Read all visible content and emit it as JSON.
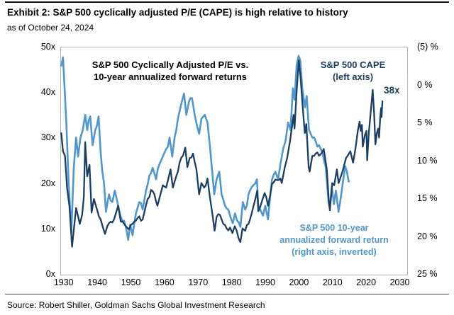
{
  "header": {
    "title": "Exhibit 2: S&P 500 cyclically adjusted P/E (CAPE) is high relative to history",
    "subtitle": "as of October 24, 2024"
  },
  "source": "Source: Robert Shiller, Goldman Sachs Global Investment Research",
  "colors": {
    "cape_line": "#1b3e63",
    "forward_line": "#4f97d3",
    "plot_border": "#b3b3b3",
    "rule": "#111111"
  },
  "annotations": {
    "chart_title_line1": "S&P 500 Cyclically Adjusted P/E vs.",
    "chart_title_line2": "10-year annualized forward returns",
    "cape_label_line1": "S&P 500 CAPE",
    "cape_label_line2": "(left axis)",
    "last_value_label": "38x",
    "forward_label_line1": "S&P 500 10-year",
    "forward_label_line2": "annualized forward return",
    "forward_label_line3": "(right axis, inverted)"
  },
  "chart_data": {
    "type": "line",
    "title": "S&P 500 Cyclically Adjusted P/E vs. 10-year annualized forward returns",
    "grid": false,
    "legend_position": "inline-annotations",
    "x_axis": {
      "range": [
        1929,
        2032
      ],
      "ticks": [
        1930,
        1940,
        1950,
        1960,
        1970,
        1980,
        1990,
        2000,
        2010,
        2020,
        2030
      ]
    },
    "left_axis": {
      "title": "S&P 500 CAPE (left axis)",
      "range": [
        0,
        50
      ],
      "tick_values": [
        50,
        40,
        30,
        20,
        10,
        0
      ],
      "tick_labels": [
        "50x",
        "40x",
        "30x",
        "20x",
        "10x",
        "0x"
      ]
    },
    "right_axis": {
      "title": "S&P 500 10-year annualized forward return (right axis, inverted)",
      "range": [
        -5,
        25
      ],
      "inverted": true,
      "tick_values": [
        -5,
        0,
        5,
        10,
        15,
        20,
        25
      ],
      "tick_labels": [
        "(5) %",
        "0 %",
        "5 %",
        "10 %",
        "15 %",
        "20 %",
        "25 %"
      ]
    },
    "series": [
      {
        "name": "S&P 500 10-year annualized forward return",
        "axis": "right",
        "color": "#4f97d3",
        "stroke_width": 2.6,
        "jitter": 0.5,
        "points": [
          [
            1929.3,
            -2.5
          ],
          [
            1929.8,
            -3.6
          ],
          [
            1930.8,
            5
          ],
          [
            1931.5,
            13
          ],
          [
            1932.3,
            19.5
          ],
          [
            1933,
            11
          ],
          [
            1933.7,
            7
          ],
          [
            1934.3,
            9.5
          ],
          [
            1935,
            7
          ],
          [
            1936.4,
            4
          ],
          [
            1937,
            6
          ],
          [
            1937.9,
            4.2
          ],
          [
            1938.6,
            8
          ],
          [
            1939.4,
            6
          ],
          [
            1940.4,
            4.2
          ],
          [
            1941,
            9
          ],
          [
            1942,
            13
          ],
          [
            1942.6,
            16.8
          ],
          [
            1943.5,
            14.5
          ],
          [
            1944.5,
            15.5
          ],
          [
            1945.2,
            14
          ],
          [
            1946,
            15.5
          ],
          [
            1947,
            17.5
          ],
          [
            1948,
            18
          ],
          [
            1949.2,
            20.5
          ],
          [
            1949.8,
            18.5
          ],
          [
            1950.5,
            19.9
          ],
          [
            1951.5,
            17
          ],
          [
            1952.5,
            15.5
          ],
          [
            1953.5,
            16.5
          ],
          [
            1954.5,
            14
          ],
          [
            1955.5,
            12
          ],
          [
            1956.5,
            11
          ],
          [
            1957.5,
            12.5
          ],
          [
            1958.5,
            10.5
          ],
          [
            1959.5,
            9.5
          ],
          [
            1960.5,
            8.5
          ],
          [
            1961.5,
            7
          ],
          [
            1962.3,
            9.5
          ],
          [
            1963,
            7
          ],
          [
            1964,
            4.5
          ],
          [
            1965,
            2.5
          ],
          [
            1965.8,
            1.2
          ],
          [
            1966.5,
            4
          ],
          [
            1967.3,
            2.2
          ],
          [
            1968.2,
            1.8
          ],
          [
            1969,
            4
          ],
          [
            1970.3,
            6.5
          ],
          [
            1971,
            4.5
          ],
          [
            1972,
            4
          ],
          [
            1972.8,
            5
          ],
          [
            1973.5,
            8
          ],
          [
            1974.8,
            14.5
          ],
          [
            1975.5,
            12.5
          ],
          [
            1976.3,
            11.5
          ],
          [
            1977,
            14.5
          ],
          [
            1978,
            16
          ],
          [
            1979,
            16.5
          ],
          [
            1980.3,
            18.3
          ],
          [
            1981,
            17
          ],
          [
            1982.6,
            18.8
          ],
          [
            1983.3,
            15.5
          ],
          [
            1984,
            16.5
          ],
          [
            1985,
            14.5
          ],
          [
            1986,
            13.5
          ],
          [
            1987.5,
            12.5
          ],
          [
            1987.9,
            16
          ],
          [
            1988.5,
            16.5
          ],
          [
            1989.3,
            17.3
          ],
          [
            1990,
            16
          ],
          [
            1990.8,
            17.8
          ],
          [
            1991.5,
            14.5
          ],
          [
            1992,
            12.5
          ],
          [
            1993,
            11.5
          ],
          [
            1993.8,
            12.5
          ],
          [
            1994.5,
            10.5
          ],
          [
            1995.3,
            8.5
          ],
          [
            1996,
            7.5
          ],
          [
            1996.8,
            5
          ],
          [
            1997.5,
            6
          ],
          [
            1998.2,
            0.5
          ],
          [
            1998.7,
            2
          ],
          [
            1999.3,
            -2.5
          ],
          [
            1999.9,
            -3.8
          ],
          [
            2000.4,
            -3.2
          ],
          [
            2001,
            0.5
          ],
          [
            2001.8,
            3
          ],
          [
            2002.3,
            1.5
          ],
          [
            2003,
            6
          ],
          [
            2004,
            7
          ],
          [
            2005,
            7.5
          ],
          [
            2006,
            8
          ],
          [
            2007,
            9
          ],
          [
            2008,
            11
          ],
          [
            2008.8,
            15.5
          ],
          [
            2009.2,
            16.3
          ],
          [
            2009.8,
            13.5
          ],
          [
            2010.4,
            15.8
          ],
          [
            2011,
            14
          ],
          [
            2011.8,
            16.8
          ],
          [
            2012.5,
            14.8
          ],
          [
            2013.2,
            12.5
          ],
          [
            2013.8,
            10.8
          ],
          [
            2014.3,
            11.5
          ],
          [
            2014.8,
            12.8
          ]
        ]
      },
      {
        "name": "S&P 500 CAPE",
        "axis": "left",
        "color": "#1b3e63",
        "stroke_width": 2.3,
        "jitter": 0.55,
        "points": [
          [
            1929.3,
            31
          ],
          [
            1929.8,
            27
          ],
          [
            1930.4,
            26
          ],
          [
            1931,
            19
          ],
          [
            1931.7,
            15
          ],
          [
            1932.5,
            6
          ],
          [
            1933.2,
            11
          ],
          [
            1933.7,
            14.5
          ],
          [
            1934.2,
            13
          ],
          [
            1934.8,
            11
          ],
          [
            1935.5,
            13
          ],
          [
            1936,
            17
          ],
          [
            1936.4,
            29
          ],
          [
            1937,
            21.5
          ],
          [
            1937.7,
            24
          ],
          [
            1938.3,
            13.5
          ],
          [
            1939,
            16.5
          ],
          [
            1940,
            14
          ],
          [
            1941,
            12
          ],
          [
            1942.3,
            8.8
          ],
          [
            1943,
            10.5
          ],
          [
            1944,
            11.5
          ],
          [
            1945,
            12
          ],
          [
            1946.2,
            15
          ],
          [
            1947,
            11.5
          ],
          [
            1948,
            11
          ],
          [
            1949.4,
            9.8
          ],
          [
            1950,
            10.8
          ],
          [
            1951,
            11.5
          ],
          [
            1952,
            12.3
          ],
          [
            1953.5,
            12
          ],
          [
            1954,
            13.5
          ],
          [
            1955,
            16.5
          ],
          [
            1956,
            18.5
          ],
          [
            1957,
            17.5
          ],
          [
            1957.9,
            15
          ],
          [
            1958.8,
            17.5
          ],
          [
            1959.5,
            19.5
          ],
          [
            1960.5,
            19
          ],
          [
            1961.8,
            23
          ],
          [
            1962.5,
            19
          ],
          [
            1963.5,
            21.5
          ],
          [
            1964.5,
            24.5
          ],
          [
            1965.5,
            26
          ],
          [
            1966.2,
            27.8
          ],
          [
            1966.8,
            23.5
          ],
          [
            1967.5,
            25.5
          ],
          [
            1968.5,
            26.5
          ],
          [
            1969.5,
            23
          ],
          [
            1970.3,
            17.5
          ],
          [
            1971,
            20
          ],
          [
            1971.8,
            19
          ],
          [
            1972.8,
            21
          ],
          [
            1973.5,
            17
          ],
          [
            1974.3,
            13
          ],
          [
            1974.9,
            9.5
          ],
          [
            1975.5,
            12.5
          ],
          [
            1976.5,
            13
          ],
          [
            1977.5,
            11
          ],
          [
            1978.5,
            10
          ],
          [
            1979.5,
            10.2
          ],
          [
            1980.2,
            9
          ],
          [
            1980.9,
            10.5
          ],
          [
            1981.5,
            9.5
          ],
          [
            1982.6,
            7
          ],
          [
            1983.2,
            10
          ],
          [
            1984,
            9.5
          ],
          [
            1985,
            11
          ],
          [
            1986,
            13.5
          ],
          [
            1987.6,
            18.3
          ],
          [
            1987.9,
            13.8
          ],
          [
            1988.5,
            14.8
          ],
          [
            1989.8,
            17.8
          ],
          [
            1990.8,
            15
          ],
          [
            1991.5,
            17.5
          ],
          [
            1992,
            19.8
          ],
          [
            1993,
            20.8
          ],
          [
            1994.5,
            21
          ],
          [
            1994.9,
            20
          ],
          [
            1995.8,
            23.5
          ],
          [
            1996.5,
            25.5
          ],
          [
            1997.3,
            29
          ],
          [
            1998.4,
            35
          ],
          [
            1998.7,
            32
          ],
          [
            1999.3,
            40
          ],
          [
            1999.95,
            47
          ],
          [
            2000.5,
            43
          ],
          [
            2001.2,
            36
          ],
          [
            2001.75,
            31
          ],
          [
            2002.2,
            33
          ],
          [
            2002.9,
            23.5
          ],
          [
            2003.2,
            22.5
          ],
          [
            2004,
            26
          ],
          [
            2005,
            26.5
          ],
          [
            2006,
            26
          ],
          [
            2007.4,
            27.5
          ],
          [
            2008.3,
            23
          ],
          [
            2008.9,
            16
          ],
          [
            2009.2,
            14
          ],
          [
            2009.9,
            20
          ],
          [
            2010.5,
            19.5
          ],
          [
            2011.3,
            23
          ],
          [
            2011.8,
            20
          ],
          [
            2012.5,
            21.5
          ],
          [
            2013.5,
            24
          ],
          [
            2014.5,
            26
          ],
          [
            2015.3,
            27
          ],
          [
            2016.1,
            24.5
          ],
          [
            2017,
            28.5
          ],
          [
            2018.05,
            33.5
          ],
          [
            2018.4,
            31.5
          ],
          [
            2018.75,
            32.8
          ],
          [
            2019.0,
            28
          ],
          [
            2019.6,
            30.5
          ],
          [
            2020.1,
            31.5
          ],
          [
            2020.3,
            25
          ],
          [
            2020.8,
            31
          ],
          [
            2021.4,
            36
          ],
          [
            2021.95,
            40.5
          ],
          [
            2022.4,
            35
          ],
          [
            2022.75,
            28.5
          ],
          [
            2023.2,
            31
          ],
          [
            2023.6,
            32
          ],
          [
            2023.85,
            30
          ],
          [
            2024.2,
            34.5
          ],
          [
            2024.45,
            36.5
          ],
          [
            2024.6,
            34.5
          ],
          [
            2024.85,
            38
          ]
        ]
      }
    ],
    "annotations": {
      "last_cape_value": "38x"
    }
  }
}
